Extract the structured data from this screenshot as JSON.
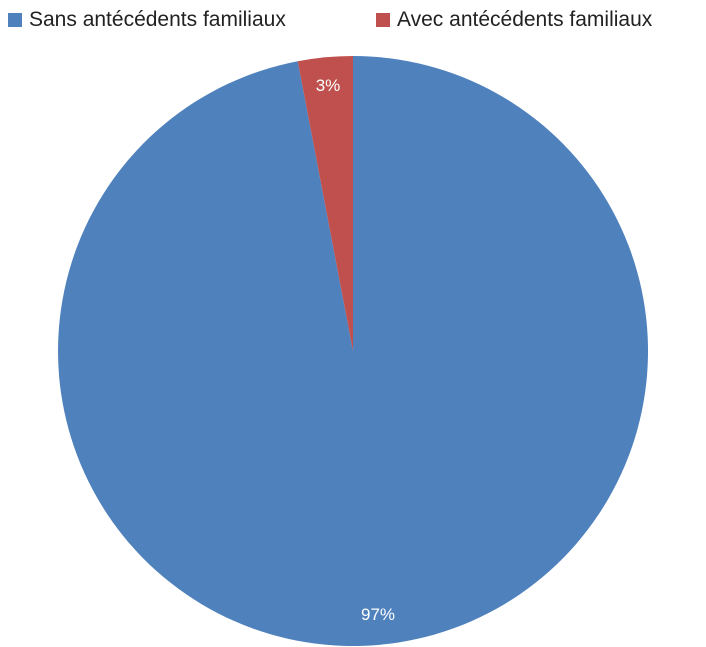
{
  "chart_data": {
    "type": "pie",
    "title": "",
    "categories": [
      "Sans antécédents familiaux",
      "Avec  antécédents familiaux"
    ],
    "values": [
      97,
      3
    ],
    "data_labels": [
      "97%",
      "3%"
    ],
    "colors": [
      "#4F81BD",
      "#C0504D"
    ],
    "legend_position": "top"
  }
}
